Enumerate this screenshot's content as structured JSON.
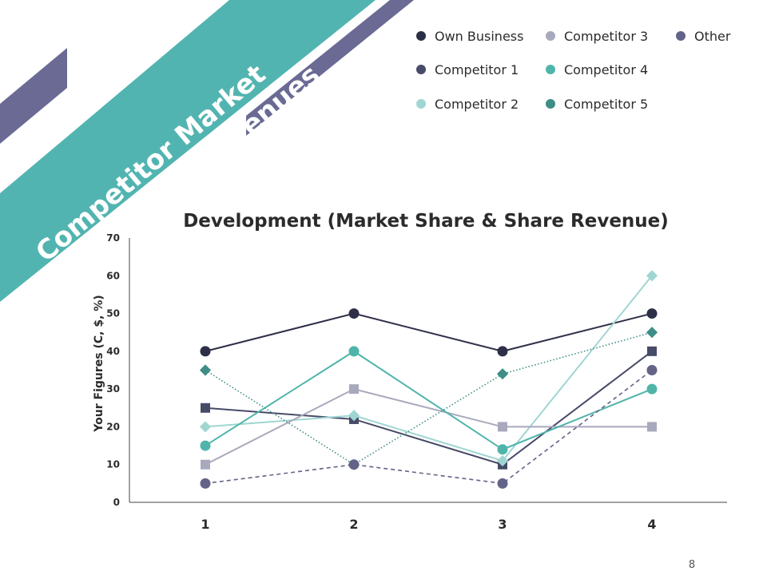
{
  "slide": {
    "title_line1": "Competitor Market",
    "title_line2": "Share & Sales Revenues",
    "page_number": "8",
    "colors": {
      "banner": "#52b4b0",
      "stripe": "#6a6a95"
    }
  },
  "chart_data": {
    "type": "line",
    "title": "Development (Market Share & Share Revenue)",
    "ylabel": "Your Figures (C, $, %)",
    "xlabel": "",
    "x": [
      "1",
      "2",
      "3",
      "4"
    ],
    "ylim": [
      0,
      70
    ],
    "yticks": [
      0,
      10,
      20,
      30,
      40,
      50,
      60,
      70
    ],
    "grid": false,
    "legend_position": "top-right",
    "series": [
      {
        "name": "Own Business",
        "values": [
          40,
          50,
          40,
          50
        ],
        "color": "#2d2f47",
        "marker": "circle",
        "dash": "solid"
      },
      {
        "name": "Competitor 1",
        "values": [
          25,
          22,
          10,
          40
        ],
        "color": "#474b68",
        "marker": "square",
        "dash": "solid"
      },
      {
        "name": "Competitor 2",
        "values": [
          20,
          23,
          11,
          60
        ],
        "color": "#9fd6d2",
        "marker": "diamond",
        "dash": "solid"
      },
      {
        "name": "Competitor 3",
        "values": [
          10,
          30,
          20,
          20
        ],
        "color": "#a9a9bd",
        "marker": "square",
        "dash": "solid"
      },
      {
        "name": "Competitor 4",
        "values": [
          15,
          40,
          14,
          30
        ],
        "color": "#4fb5ab",
        "marker": "circle",
        "dash": "solid"
      },
      {
        "name": "Competitor 5",
        "values": [
          35,
          10,
          34,
          45
        ],
        "color": "#3e8d86",
        "marker": "diamond",
        "dash": "dotted"
      },
      {
        "name": "Other",
        "values": [
          5,
          10,
          5,
          35
        ],
        "color": "#636488",
        "marker": "circle",
        "dash": "dashed"
      }
    ]
  }
}
